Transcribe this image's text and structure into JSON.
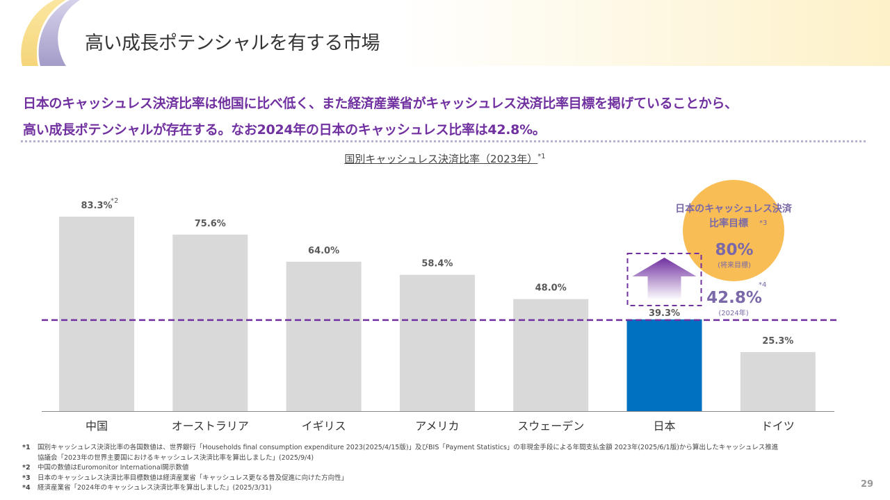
{
  "header": {
    "title": "高い成長ポテンシャルを有する市場"
  },
  "headline": {
    "line1": "日本のキャッシュレス決済比率は他国に比べ低く、また経済産業省がキャッシュレス決済比率目標を掲げていることから、",
    "line2": "高い成長ポテンシャルが存在する。なお2024年の日本のキャッシュレス比率は42.8%。"
  },
  "colors": {
    "accent": "#7030a0",
    "bar": "#d9d9d9",
    "japan": "#0070c0",
    "target_circle": "#f8bd55",
    "callout_text": "#7a68a8"
  },
  "chart_data": {
    "type": "bar",
    "title": "国別キャッシュレス決済比率（2023年）",
    "title_note": "*1",
    "categories": [
      "中国",
      "オーストラリア",
      "イギリス",
      "アメリカ",
      "スウェーデン",
      "日本",
      "ドイツ"
    ],
    "values": [
      83.3,
      75.6,
      64.0,
      58.4,
      48.0,
      39.3,
      25.3
    ],
    "labels": [
      "83.3%",
      "75.6%",
      "64.0%",
      "58.4%",
      "48.0%",
      "39.3%",
      "25.3%"
    ],
    "label_notes": [
      "*2",
      "",
      "",
      "",
      "",
      "",
      ""
    ],
    "highlight": "日本",
    "reference_line": 39.3,
    "ylim": [
      0,
      85
    ],
    "grid": false
  },
  "callout": {
    "target_title_line1": "日本のキャッシュレス決済",
    "target_title_line2": "比率目標",
    "target_note": "*3",
    "target_value": "80%",
    "target_sub": "(将来目標)",
    "current_value": "42.8%",
    "current_note": "*4",
    "current_sub": "(2024年)"
  },
  "footnotes": [
    {
      "mark": "*1",
      "text": "国別キャッシュレス決済比率の各国数値は、世界銀行「Households final consumption expenditure  2023(2025/4/15版)」及びBIS「Payment Statistics」の非現金手段による年間支払金額 2023年(2025/6/1版)から算出したキャッシュレス推進",
      "cont": "協議会「2023年の世界主要国におけるキャッシュレス決済比率を算出しました」(2025/9/4)"
    },
    {
      "mark": "*2",
      "text": "中国の数値はEuromonitor International開示数値"
    },
    {
      "mark": "*3",
      "text": "日本のキャッシュレス決済比率目標数値は経済産業省「キャッシュレス更なる普及促進に向けた方向性」"
    },
    {
      "mark": "*4",
      "text": "経済産業省「2024年のキャッシュレス決済比率を算出しました」(2025/3/31)"
    }
  ],
  "page_number": "29"
}
